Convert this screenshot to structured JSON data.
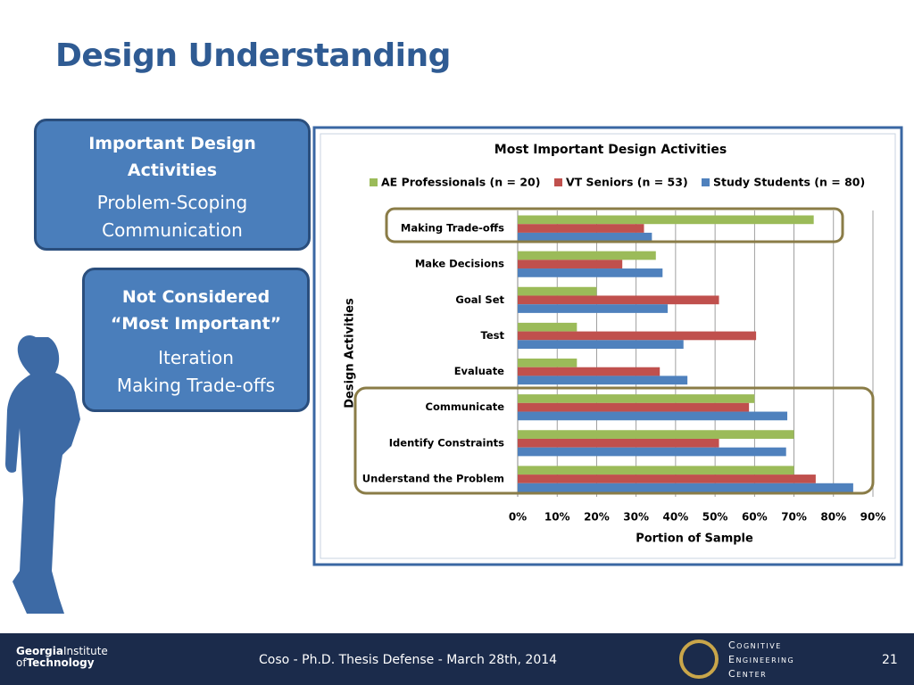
{
  "slide": {
    "title": "Design Understanding",
    "box1": {
      "heading": [
        "Important Design",
        "Activities"
      ],
      "items": [
        "Problem-Scoping",
        "Communication"
      ]
    },
    "box2": {
      "heading": [
        "Not Considered",
        "“Most Important”"
      ],
      "items": [
        "Iteration",
        "Making Trade-offs"
      ]
    },
    "footer": {
      "text": "Coso - Ph.D. Thesis Defense - March 28th, 2014",
      "page": "21",
      "left_logo": [
        "Georgia",
        "Institute",
        "of",
        "Technology"
      ],
      "right_logo": [
        "Cognitive",
        "Engineering",
        "Center"
      ]
    }
  },
  "chart_data": {
    "type": "barh",
    "title": "Most Important Design Activities",
    "x_label": "Portion of Sample",
    "y_label": "Design Activities",
    "categories": [
      "Making Trade-offs",
      "Make Decisions",
      "Goal Set",
      "Test",
      "Evaluate",
      "Communicate",
      "Identify Constraints",
      "Understand the Problem"
    ],
    "series": [
      {
        "name": "AE Professionals (n = 20)",
        "color": "#9bbb59",
        "values": [
          75,
          35,
          20,
          15,
          15,
          60,
          70,
          70
        ]
      },
      {
        "name": "VT Seniors (n = 53)",
        "color": "#c0504d",
        "values": [
          32,
          26.5,
          51,
          60.4,
          36,
          58.6,
          51,
          75.5
        ]
      },
      {
        "name": "Study Students (n = 80)",
        "color": "#4f81bd",
        "values": [
          34,
          36.7,
          38,
          42,
          43,
          68.3,
          68,
          85
        ]
      }
    ],
    "xlim": [
      0,
      90
    ],
    "xticks": [
      {
        "value": 0,
        "label": "0%"
      },
      {
        "value": 10,
        "label": "10%"
      },
      {
        "value": 20,
        "label": "20%"
      },
      {
        "value": 30,
        "label": "30%"
      },
      {
        "value": 40,
        "label": "40%"
      },
      {
        "value": 50,
        "label": "50%"
      },
      {
        "value": 60,
        "label": "60%"
      },
      {
        "value": 70,
        "label": "70%"
      },
      {
        "value": 80,
        "label": "80%"
      },
      {
        "value": 90,
        "label": "90%"
      }
    ],
    "grid": true,
    "legend": "top"
  }
}
